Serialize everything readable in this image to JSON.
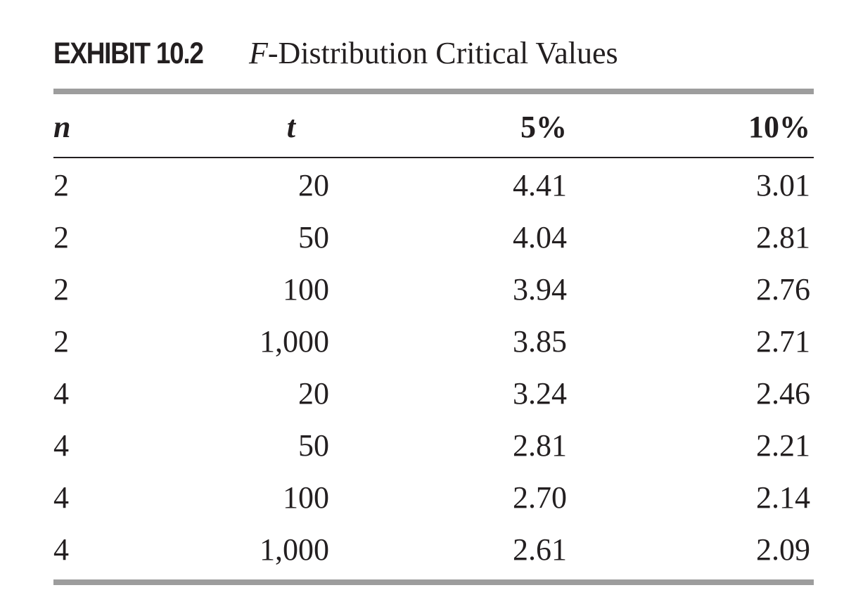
{
  "exhibit": {
    "label": "EXHIBIT 10.2",
    "title_italic": "F",
    "title_rest": "-Distribution Critical Values"
  },
  "table": {
    "headers": [
      "n",
      "t",
      "5%",
      "10%"
    ],
    "rows": [
      [
        "2",
        "20",
        "4.41",
        "3.01"
      ],
      [
        "2",
        "50",
        "4.04",
        "2.81"
      ],
      [
        "2",
        "100",
        "3.94",
        "2.76"
      ],
      [
        "2",
        "1,000",
        "3.85",
        "2.71"
      ],
      [
        "4",
        "20",
        "3.24",
        "2.46"
      ],
      [
        "4",
        "50",
        "2.81",
        "2.21"
      ],
      [
        "4",
        "100",
        "2.70",
        "2.14"
      ],
      [
        "4",
        "1,000",
        "2.61",
        "2.09"
      ]
    ]
  }
}
